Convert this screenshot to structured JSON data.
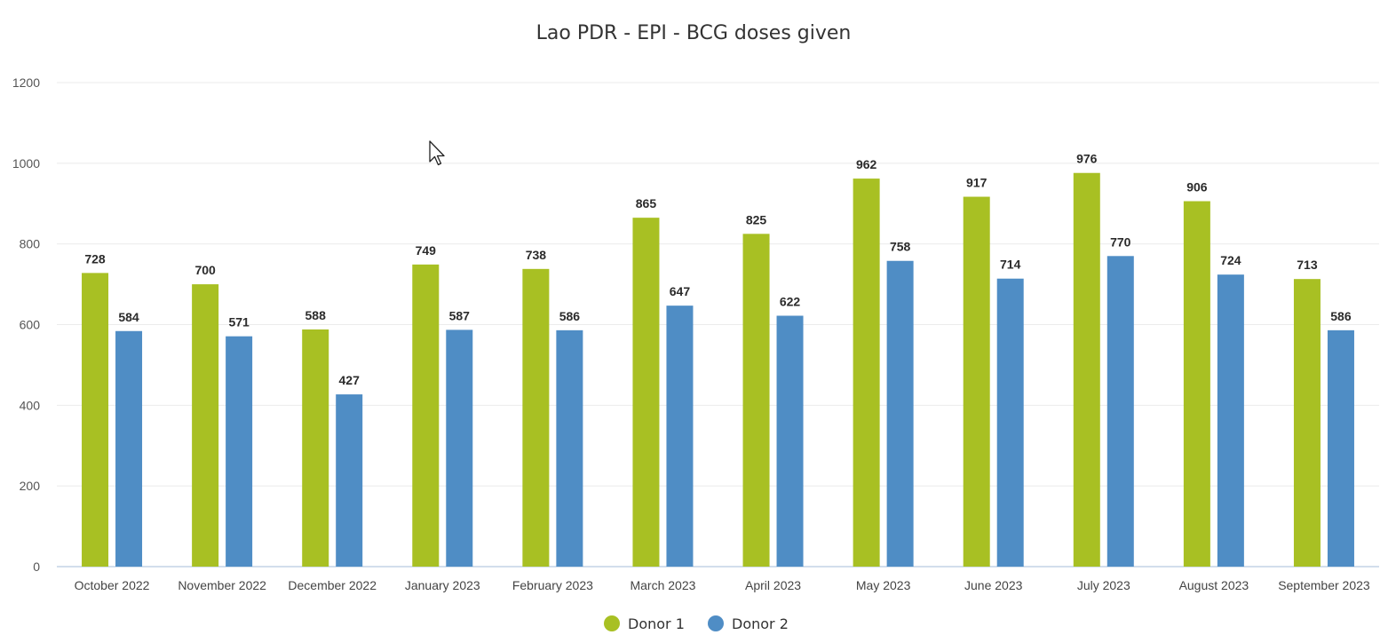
{
  "chart_data": {
    "type": "bar",
    "title": "Lao PDR - EPI - BCG doses given",
    "xlabel": "",
    "ylabel": "",
    "ylim": [
      0,
      1200
    ],
    "yticks": [
      0,
      200,
      400,
      600,
      800,
      1000,
      1200
    ],
    "grid": true,
    "legend_position": "bottom-center",
    "categories": [
      "October 2022",
      "November 2022",
      "December 2022",
      "January 2023",
      "February 2023",
      "March 2023",
      "April 2023",
      "May 2023",
      "June 2023",
      "July 2023",
      "August 2023",
      "September 2023"
    ],
    "series": [
      {
        "name": "Donor 1",
        "color": "#a8c023",
        "values": [
          728,
          700,
          588,
          749,
          738,
          865,
          825,
          962,
          917,
          976,
          906,
          713
        ]
      },
      {
        "name": "Donor 2",
        "color": "#4f8dc5",
        "values": [
          584,
          571,
          427,
          587,
          586,
          647,
          622,
          758,
          714,
          770,
          724,
          586
        ]
      }
    ]
  },
  "cursor_icon": "mouse-pointer-icon"
}
